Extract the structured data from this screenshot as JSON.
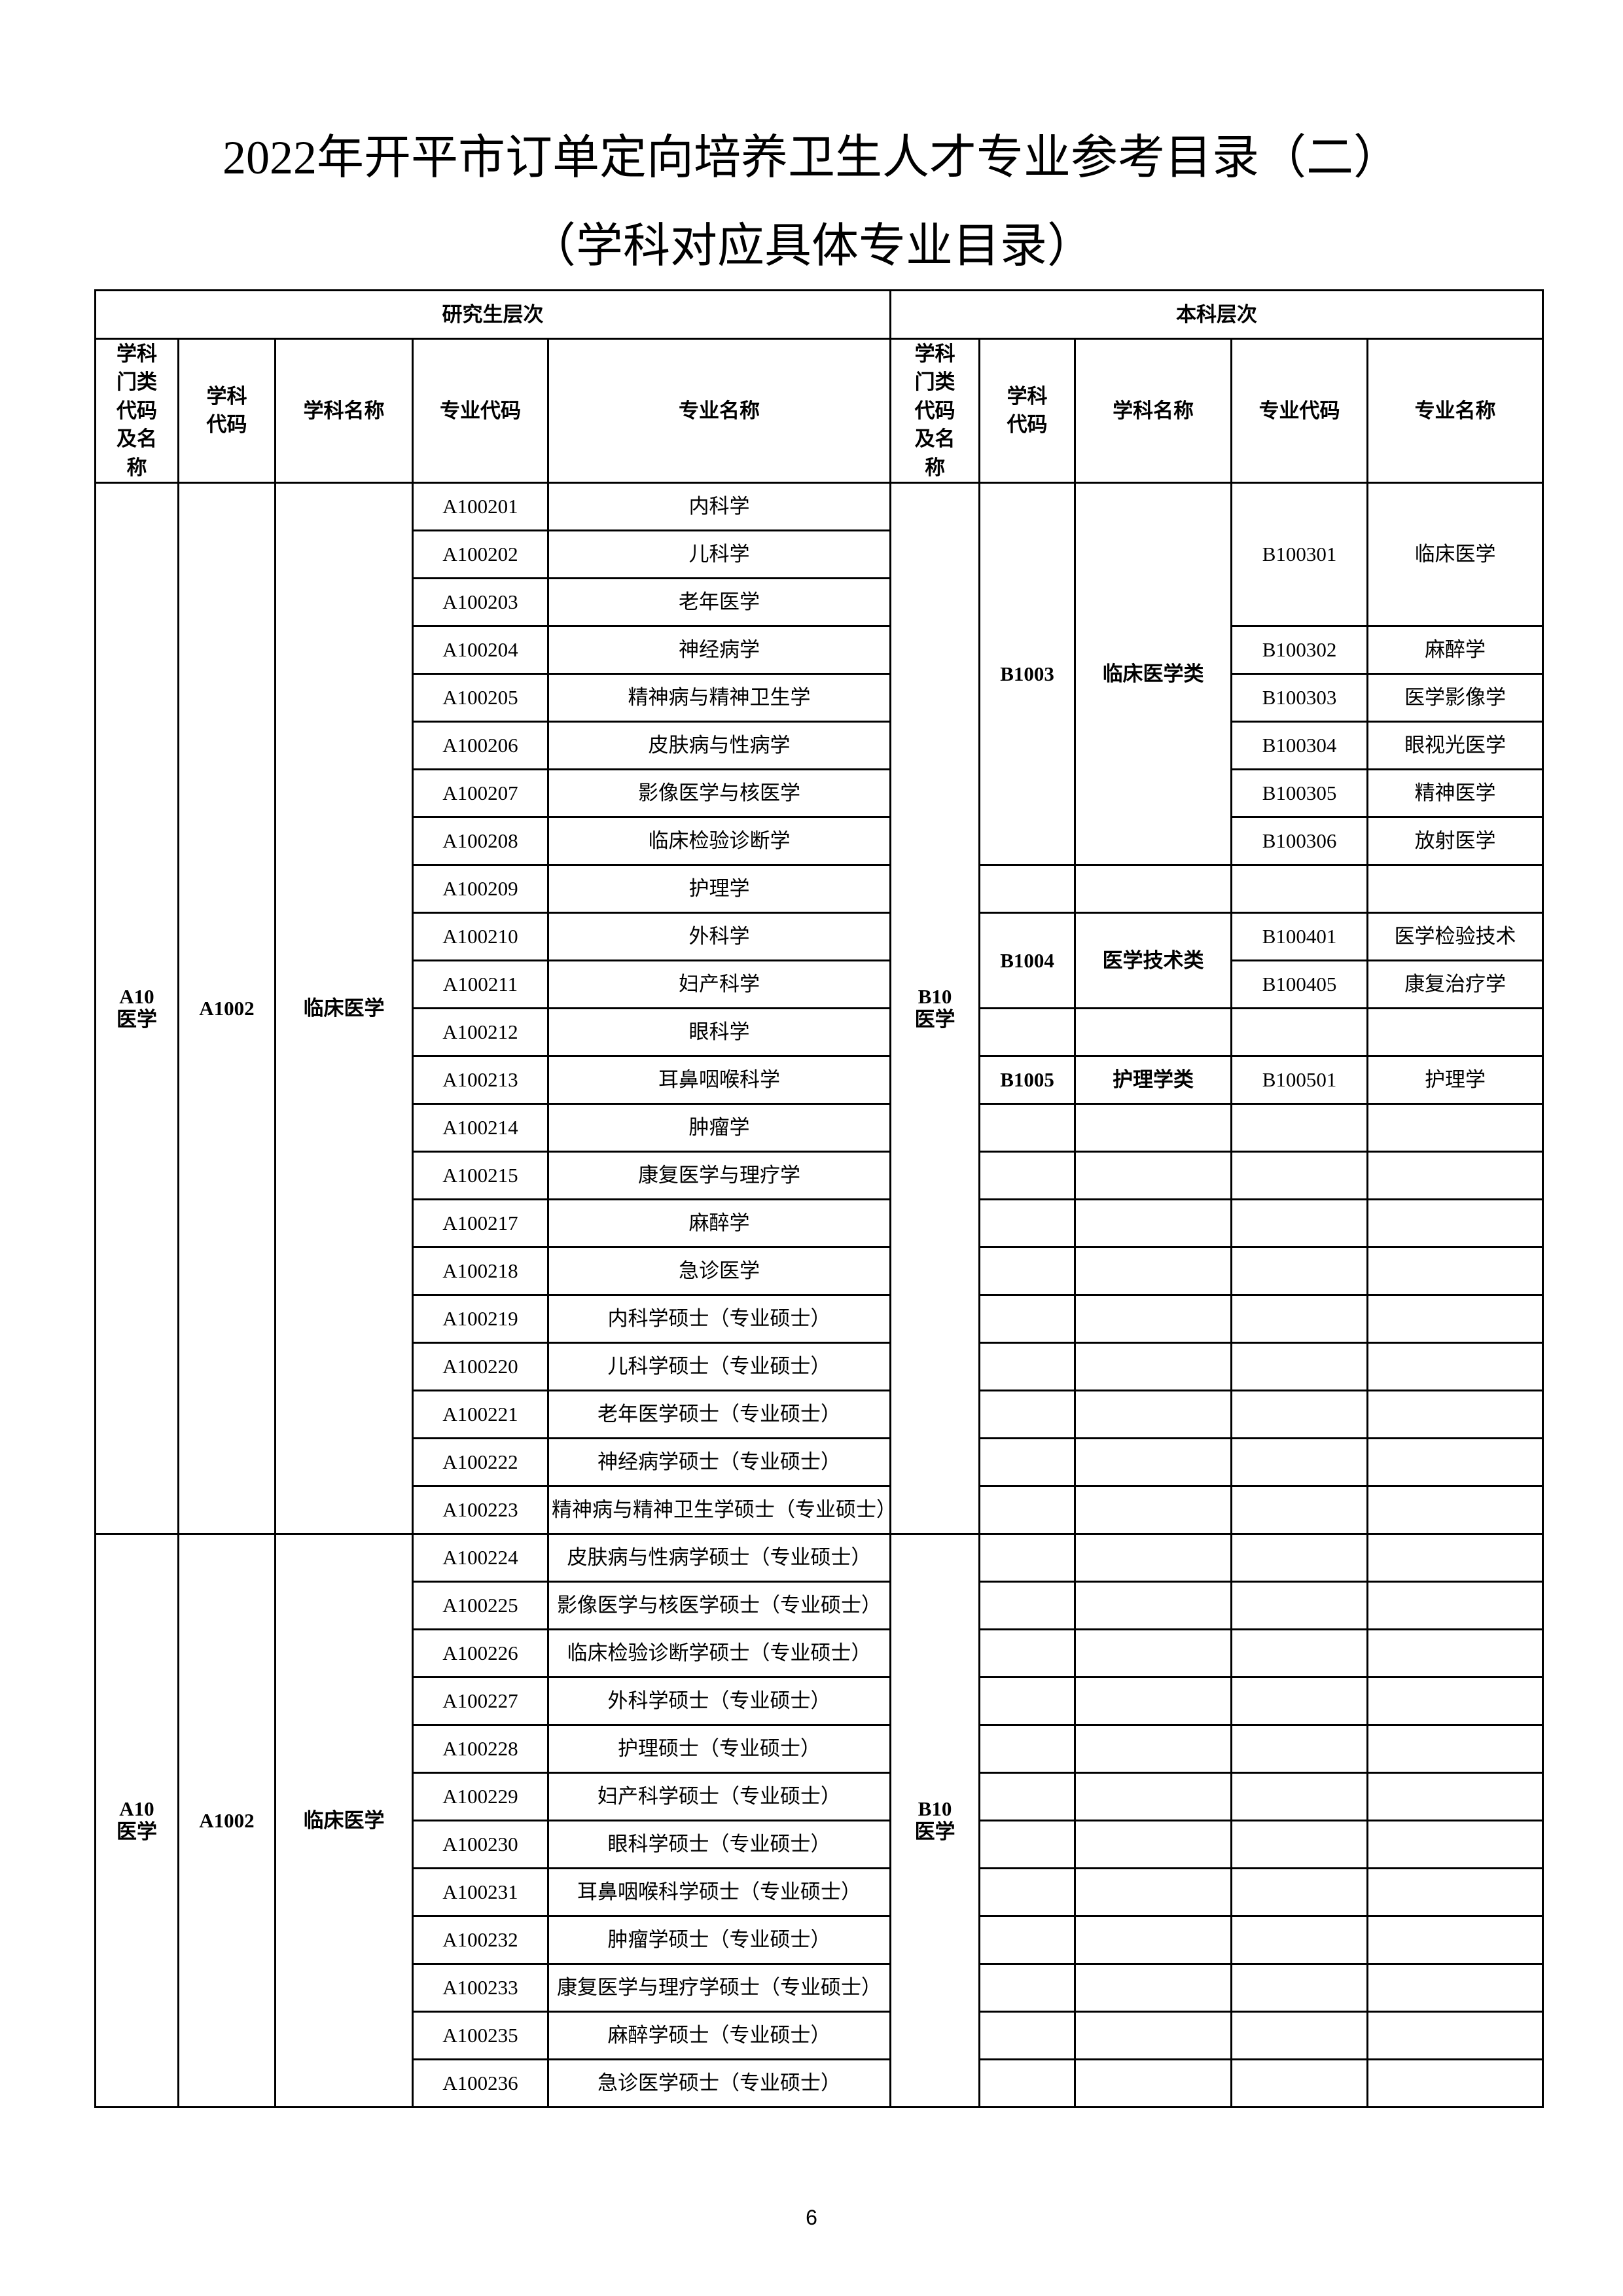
{
  "title": "2022年开平市订单定向培养卫生人才专业参考目录（二）",
  "subtitle": "（学科对应具体专业目录）",
  "page_number": "6",
  "header": {
    "grad_level": "研究生层次",
    "undergrad_level": "本科层次",
    "columns": [
      "学科门类代码及名称",
      "学科代码",
      "学科名称",
      "专业代码",
      "专业名称",
      "学科门类代码及名称",
      "学科代码",
      "学科名称",
      "专业代码",
      "专业名称"
    ]
  },
  "sections": [
    {
      "grad": {
        "category": "A10\n医学",
        "subject_code": "A1002",
        "subject_name": "临床医学",
        "majors": [
          {
            "code": "A100201",
            "name": "内科学"
          },
          {
            "code": "A100202",
            "name": "儿科学"
          },
          {
            "code": "A100203",
            "name": "老年医学"
          },
          {
            "code": "A100204",
            "name": "神经病学"
          },
          {
            "code": "A100205",
            "name": "精神病与精神卫生学"
          },
          {
            "code": "A100206",
            "name": "皮肤病与性病学"
          },
          {
            "code": "A100207",
            "name": "影像医学与核医学"
          },
          {
            "code": "A100208",
            "name": "临床检验诊断学"
          },
          {
            "code": "A100209",
            "name": "护理学"
          },
          {
            "code": "A100210",
            "name": "外科学"
          },
          {
            "code": "A100211",
            "name": "妇产科学"
          },
          {
            "code": "A100212",
            "name": "眼科学"
          },
          {
            "code": "A100213",
            "name": "耳鼻咽喉科学"
          },
          {
            "code": "A100214",
            "name": "肿瘤学"
          },
          {
            "code": "A100215",
            "name": "康复医学与理疗学"
          },
          {
            "code": "A100217",
            "name": "麻醉学"
          },
          {
            "code": "A100218",
            "name": "急诊医学"
          },
          {
            "code": "A100219",
            "name": "内科学硕士（专业硕士）"
          },
          {
            "code": "A100220",
            "name": "儿科学硕士（专业硕士）"
          },
          {
            "code": "A100221",
            "name": "老年医学硕士（专业硕士）"
          },
          {
            "code": "A100222",
            "name": "神经病学硕士（专业硕士）"
          },
          {
            "code": "A100223",
            "name": "精神病与精神卫生学硕士（专业硕士）"
          }
        ]
      },
      "undergrad": {
        "category": "B10\n医学",
        "groups": [
          {
            "code": "B1003",
            "name": "临床医学类",
            "majors": [
              {
                "code": "B100301",
                "name": "临床医学"
              },
              {
                "code": "B100302",
                "name": "麻醉学"
              },
              {
                "code": "B100303",
                "name": "医学影像学"
              },
              {
                "code": "B100304",
                "name": "眼视光医学"
              },
              {
                "code": "B100305",
                "name": "精神医学"
              },
              {
                "code": "B100306",
                "name": "放射医学"
              }
            ]
          },
          {
            "code": "B1004",
            "name": "医学技术类",
            "majors": [
              {
                "code": "B100401",
                "name": "医学检验技术"
              },
              {
                "code": "B100405",
                "name": "康复治疗学"
              }
            ]
          },
          {
            "code": "B1005",
            "name": "护理学类",
            "majors": [
              {
                "code": "B100501",
                "name": "护理学"
              }
            ]
          }
        ]
      }
    },
    {
      "grad": {
        "category": "A10\n医学",
        "subject_code": "A1002",
        "subject_name": "临床医学",
        "majors": [
          {
            "code": "A100224",
            "name": "皮肤病与性病学硕士（专业硕士）"
          },
          {
            "code": "A100225",
            "name": "影像医学与核医学硕士（专业硕士）"
          },
          {
            "code": "A100226",
            "name": "临床检验诊断学硕士（专业硕士）"
          },
          {
            "code": "A100227",
            "name": "外科学硕士（专业硕士）"
          },
          {
            "code": "A100228",
            "name": "护理硕士（专业硕士）"
          },
          {
            "code": "A100229",
            "name": "妇产科学硕士（专业硕士）"
          },
          {
            "code": "A100230",
            "name": "眼科学硕士（专业硕士）"
          },
          {
            "code": "A100231",
            "name": "耳鼻咽喉科学硕士（专业硕士）"
          },
          {
            "code": "A100232",
            "name": "肿瘤学硕士（专业硕士）"
          },
          {
            "code": "A100233",
            "name": "康复医学与理疗学硕士（专业硕士）"
          },
          {
            "code": "A100235",
            "name": "麻醉学硕士（专业硕士）"
          },
          {
            "code": "A100236",
            "name": "急诊医学硕士（专业硕士）"
          }
        ]
      },
      "undergrad": {
        "category": "B10\n医学",
        "groups": []
      }
    }
  ]
}
